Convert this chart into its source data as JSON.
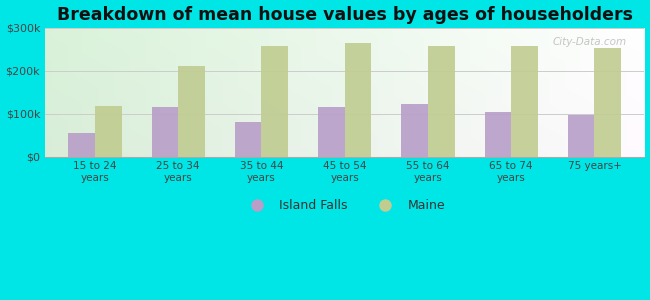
{
  "categories": [
    "15 to 24\nyears",
    "25 to 34\nyears",
    "35 to 44\nyears",
    "45 to 54\nyears",
    "55 to 64\nyears",
    "65 to 74\nyears",
    "75 years+"
  ],
  "island_falls": [
    55000,
    115000,
    80000,
    115000,
    122000,
    103000,
    97000
  ],
  "maine": [
    118000,
    210000,
    258000,
    265000,
    258000,
    258000,
    252000
  ],
  "island_falls_color": "#b89ec8",
  "maine_color": "#c0cc90",
  "title": "Breakdown of mean house values by ages of householders",
  "title_fontsize": 12.5,
  "title_fontweight": "bold",
  "ylim": [
    0,
    300000
  ],
  "yticks": [
    0,
    100000,
    200000,
    300000
  ],
  "ytick_labels": [
    "$0",
    "$100k",
    "$200k",
    "$300k"
  ],
  "background_color": "#00e5e5",
  "legend_labels": [
    "Island Falls",
    "Maine"
  ],
  "bar_width": 0.32,
  "watermark": "City-Data.com"
}
